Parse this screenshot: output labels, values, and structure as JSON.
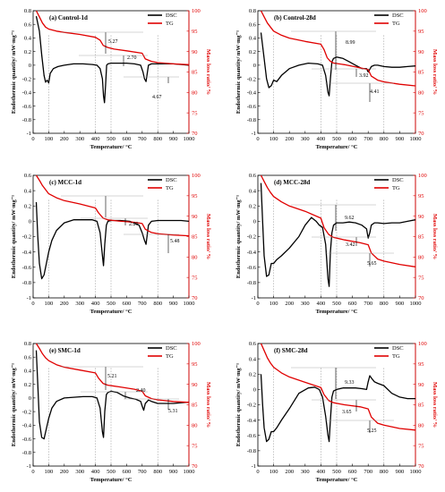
{
  "chart_data": [
    {
      "type": "line",
      "title": "(a) Control-1d",
      "xlabel": "Temperature/ °C",
      "ylabel": "Endothermic quantity/ mW·mg⁻¹",
      "ylabel_right": "Mass loss ratio/ %",
      "xlim": [
        0,
        1000
      ],
      "ylim": [
        -1,
        0.8
      ],
      "ylim_right": [
        70,
        100
      ],
      "xticks": [
        "0",
        "100",
        "200",
        "300",
        "400",
        "500",
        "600",
        "700",
        "800",
        "900",
        "1000"
      ],
      "yticks": [
        "-1",
        "-0.8",
        "-0.6",
        "-0.4",
        "-0.2",
        "0",
        "0.2",
        "0.4",
        "0.6",
        "0.8"
      ],
      "yticks_right": [
        "70",
        "75",
        "80",
        "85",
        "90",
        "95",
        "100"
      ],
      "legend": [
        "DSC",
        "TG"
      ],
      "series": [
        {
          "name": "DSC",
          "axis": "left",
          "color": "#000000",
          "x": [
            20,
            40,
            55,
            70,
            80,
            90,
            100,
            110,
            130,
            160,
            200,
            260,
            320,
            380,
            410,
            430,
            445,
            452,
            458,
            465,
            472,
            480,
            500,
            540,
            600,
            650,
            690,
            705,
            715,
            725,
            740,
            760,
            800,
            850,
            900,
            950,
            1000
          ],
          "y": [
            0.72,
            0.5,
            0.15,
            -0.15,
            -0.25,
            -0.22,
            -0.26,
            -0.12,
            -0.05,
            -0.02,
            0.0,
            0.02,
            0.02,
            0.01,
            0.0,
            -0.05,
            -0.2,
            -0.45,
            -0.55,
            -0.3,
            0.0,
            0.02,
            0.03,
            0.03,
            0.03,
            0.02,
            0.0,
            -0.1,
            -0.2,
            -0.24,
            0.0,
            0.02,
            0.02,
            0.02,
            0.02,
            0.01,
            0.0
          ]
        },
        {
          "name": "TG",
          "axis": "right",
          "color": "#e00000",
          "x": [
            20,
            40,
            60,
            80,
            100,
            150,
            200,
            300,
            400,
            430,
            450,
            480,
            520,
            600,
            700,
            720,
            760,
            800,
            900,
            1000
          ],
          "y": [
            100,
            98.5,
            97,
            96,
            95.5,
            95,
            94.7,
            94.2,
            93.5,
            92.8,
            91.5,
            91,
            90.6,
            90.2,
            89.6,
            88.2,
            87.6,
            87.3,
            87.0,
            86.8
          ]
        }
      ],
      "annotations": [
        "5.27",
        "2.70",
        "4.67"
      ]
    },
    {
      "type": "line",
      "title": "(b) Control-28d",
      "xlabel": "Temperature/ °C",
      "ylabel": "Endothermic quantity/ mW·mg⁻¹",
      "ylabel_right": "Mass loss ratio/ %",
      "xlim": [
        0,
        1000
      ],
      "ylim": [
        -1,
        0.8
      ],
      "ylim_right": [
        70,
        100
      ],
      "xticks": [
        "0",
        "100",
        "200",
        "300",
        "400",
        "500",
        "600",
        "700",
        "800",
        "900",
        "1000"
      ],
      "yticks": [
        "-1",
        "-0.8",
        "-0.6",
        "-0.4",
        "-0.2",
        "0",
        "0.2",
        "0.4",
        "0.6",
        "0.8"
      ],
      "yticks_right": [
        "70",
        "75",
        "80",
        "85",
        "90",
        "95",
        "100"
      ],
      "legend": [
        "DSC",
        "TG"
      ],
      "series": [
        {
          "name": "DSC",
          "axis": "left",
          "color": "#000000",
          "x": [
            20,
            40,
            55,
            70,
            85,
            100,
            120,
            150,
            200,
            260,
            320,
            380,
            410,
            430,
            445,
            452,
            460,
            470,
            480,
            500,
            540,
            580,
            620,
            660,
            690,
            700,
            710,
            720,
            740,
            760,
            800,
            850,
            900,
            950,
            1000
          ],
          "y": [
            0.48,
            0.1,
            -0.2,
            -0.33,
            -0.3,
            -0.22,
            -0.24,
            -0.15,
            -0.05,
            0.0,
            0.03,
            0.02,
            0.0,
            -0.15,
            -0.4,
            -0.45,
            -0.2,
            0.05,
            0.1,
            0.12,
            0.1,
            0.05,
            0.0,
            -0.05,
            -0.05,
            -0.1,
            -0.06,
            -0.02,
            0.0,
            0.0,
            -0.02,
            -0.03,
            -0.03,
            -0.02,
            -0.01
          ]
        },
        {
          "name": "TG",
          "axis": "right",
          "color": "#e00000",
          "x": [
            20,
            40,
            60,
            80,
            100,
            150,
            200,
            300,
            400,
            420,
            440,
            460,
            480,
            550,
            650,
            700,
            720,
            760,
            800,
            900,
            1000
          ],
          "y": [
            100,
            98.5,
            97,
            96,
            95,
            94,
            93.3,
            92.5,
            91.8,
            90.5,
            88.5,
            87.6,
            87.2,
            86.8,
            86.0,
            85.6,
            84.0,
            83.0,
            82.6,
            82.0,
            81.6
          ]
        }
      ],
      "annotations": [
        "8.99",
        "3.92",
        "4.41"
      ]
    },
    {
      "type": "line",
      "title": "(c) MCC-1d",
      "xlabel": "Temperature/ °C",
      "ylabel": "Endothermic quantity/ mW·mg⁻¹",
      "ylabel_right": "Mass loss ratio/ %",
      "xlim": [
        0,
        1000
      ],
      "ylim": [
        -1,
        0.6
      ],
      "ylim_right": [
        70,
        100
      ],
      "xticks": [
        "0",
        "100",
        "200",
        "300",
        "400",
        "500",
        "600",
        "700",
        "800",
        "900",
        "1000"
      ],
      "yticks": [
        "-1",
        "-0.8",
        "-0.6",
        "-0.4",
        "-0.2",
        "0",
        "0.2",
        "0.4",
        "0.6"
      ],
      "yticks_right": [
        "70",
        "75",
        "80",
        "85",
        "90",
        "95",
        "100"
      ],
      "legend": [
        "DSC",
        "TG"
      ],
      "series": [
        {
          "name": "DSC",
          "axis": "left",
          "color": "#000000",
          "x": [
            20,
            30,
            40,
            55,
            70,
            85,
            100,
            120,
            150,
            200,
            260,
            320,
            380,
            410,
            430,
            445,
            452,
            460,
            470,
            480,
            500,
            560,
            620,
            680,
            700,
            715,
            725,
            740,
            760,
            800,
            850,
            900,
            950,
            1000
          ],
          "y": [
            0.25,
            -0.2,
            -0.55,
            -0.75,
            -0.7,
            -0.55,
            -0.4,
            -0.25,
            -0.12,
            -0.02,
            0.02,
            0.02,
            0.02,
            0.0,
            -0.15,
            -0.45,
            -0.58,
            -0.3,
            -0.05,
            0.0,
            0.01,
            0.01,
            0.0,
            -0.05,
            -0.15,
            -0.25,
            -0.3,
            -0.05,
            0.0,
            0.01,
            0.01,
            0.01,
            0.01,
            0.0
          ]
        },
        {
          "name": "TG",
          "axis": "right",
          "color": "#e00000",
          "x": [
            20,
            40,
            60,
            80,
            100,
            150,
            200,
            300,
            400,
            420,
            450,
            480,
            550,
            650,
            700,
            720,
            760,
            800,
            900,
            1000
          ],
          "y": [
            100,
            98.8,
            97.5,
            96.5,
            95.5,
            94.5,
            93.8,
            93.0,
            92.0,
            90.8,
            89.5,
            89.1,
            88.8,
            88.5,
            88.2,
            86.8,
            86.0,
            85.7,
            85.4,
            85.2
          ]
        }
      ],
      "annotations": [
        "2.29",
        "5.48"
      ]
    },
    {
      "type": "line",
      "title": "(d) MCC-28d",
      "xlabel": "Temperature/ °C",
      "ylabel": "Endothermic quantity/ mW·mg⁻¹",
      "ylabel_right": "Mass loss ratio/ %",
      "xlim": [
        0,
        1000
      ],
      "ylim": [
        -1,
        0.6
      ],
      "ylim_right": [
        70,
        100
      ],
      "xticks": [
        "0",
        "100",
        "200",
        "300",
        "400",
        "500",
        "600",
        "700",
        "800",
        "900",
        "1000"
      ],
      "yticks": [
        "-1",
        "-0.8",
        "-0.6",
        "-0.4",
        "-0.2",
        "0",
        "0.2",
        "0.4",
        "0.6"
      ],
      "yticks_right": [
        "70",
        "75",
        "80",
        "85",
        "90",
        "95",
        "100"
      ],
      "legend": [
        "DSC",
        "TG"
      ],
      "series": [
        {
          "name": "DSC",
          "axis": "left",
          "color": "#000000",
          "x": [
            20,
            30,
            40,
            55,
            70,
            85,
            100,
            120,
            150,
            200,
            260,
            300,
            340,
            370,
            390,
            410,
            430,
            445,
            452,
            460,
            470,
            480,
            500,
            540,
            580,
            620,
            660,
            690,
            700,
            710,
            720,
            740,
            760,
            800,
            850,
            900,
            950,
            1000
          ],
          "y": [
            0.5,
            0.0,
            -0.45,
            -0.72,
            -0.7,
            -0.55,
            -0.55,
            -0.5,
            -0.45,
            -0.35,
            -0.2,
            -0.05,
            0.05,
            0.0,
            -0.05,
            -0.08,
            -0.3,
            -0.75,
            -0.85,
            -0.4,
            -0.15,
            -0.05,
            -0.02,
            -0.02,
            -0.01,
            -0.02,
            -0.05,
            -0.1,
            -0.22,
            -0.15,
            -0.05,
            -0.02,
            -0.02,
            -0.03,
            -0.02,
            -0.02,
            0.0,
            0.02
          ]
        },
        {
          "name": "TG",
          "axis": "right",
          "color": "#e00000",
          "x": [
            20,
            40,
            60,
            80,
            100,
            150,
            200,
            300,
            400,
            420,
            450,
            480,
            550,
            650,
            700,
            720,
            760,
            800,
            900,
            1000
          ],
          "y": [
            100,
            98.5,
            97,
            95.8,
            94.8,
            93.5,
            92.5,
            91.2,
            89.5,
            87.2,
            85.5,
            84.8,
            84.2,
            83.5,
            83.0,
            81.0,
            79.5,
            79.0,
            78.2,
            77.6
          ]
        }
      ],
      "annotations": [
        "9.62",
        "3.42",
        "5.65"
      ]
    },
    {
      "type": "line",
      "title": "(e) SMC-1d",
      "xlabel": "Temperature/ °C",
      "ylabel": "Endothermic quantity/ mW·mg⁻¹",
      "ylabel_right": "Mass loss ratio/ %",
      "xlim": [
        0,
        1000
      ],
      "ylim": [
        -1,
        0.8
      ],
      "ylim_right": [
        70,
        100
      ],
      "xticks": [
        "0",
        "100",
        "200",
        "300",
        "400",
        "500",
        "600",
        "700",
        "800",
        "900",
        "1000"
      ],
      "yticks": [
        "-1",
        "-0.8",
        "-0.6",
        "-0.4",
        "-0.2",
        "0",
        "0.2",
        "0.4",
        "0.6",
        "0.8"
      ],
      "yticks_right": [
        "70",
        "75",
        "80",
        "85",
        "90",
        "95",
        "100"
      ],
      "legend": [
        "DSC",
        "TG"
      ],
      "series": [
        {
          "name": "DSC",
          "axis": "left",
          "color": "#000000",
          "x": [
            20,
            30,
            40,
            55,
            70,
            85,
            100,
            120,
            150,
            200,
            260,
            320,
            380,
            410,
            430,
            445,
            452,
            460,
            470,
            480,
            500,
            540,
            580,
            620,
            660,
            690,
            700,
            710,
            720,
            740,
            760,
            800,
            850,
            900,
            950,
            1000
          ],
          "y": [
            0.7,
            0.2,
            -0.35,
            -0.58,
            -0.6,
            -0.45,
            -0.3,
            -0.15,
            -0.05,
            0.0,
            0.01,
            0.02,
            0.02,
            0.0,
            -0.15,
            -0.5,
            -0.58,
            -0.2,
            0.05,
            0.08,
            0.1,
            0.08,
            0.03,
            0.0,
            -0.02,
            -0.05,
            -0.12,
            -0.18,
            -0.08,
            -0.03,
            -0.05,
            -0.08,
            -0.08,
            -0.08,
            -0.07,
            -0.06
          ]
        },
        {
          "name": "TG",
          "axis": "right",
          "color": "#e00000",
          "x": [
            20,
            40,
            60,
            80,
            100,
            150,
            200,
            300,
            400,
            420,
            450,
            480,
            550,
            650,
            700,
            720,
            760,
            800,
            900,
            1000
          ],
          "y": [
            100,
            98.8,
            97.5,
            96.5,
            95.8,
            94.8,
            94.2,
            93.5,
            92.8,
            91.5,
            90.2,
            89.8,
            89.4,
            88.8,
            88.3,
            87.2,
            86.5,
            86.2,
            85.8,
            85.6
          ]
        }
      ],
      "annotations": [
        "5.21",
        "2.40",
        "5.31"
      ]
    },
    {
      "type": "line",
      "title": "(f) SMC-28d",
      "xlabel": "Temperature/ °C",
      "ylabel": "Endothermic quantity/ mW·mg⁻¹",
      "ylabel_right": "Mass loss ratio/ %",
      "xlim": [
        0,
        1000
      ],
      "ylim": [
        -1,
        0.6
      ],
      "ylim_right": [
        70,
        100
      ],
      "xticks": [
        "0",
        "100",
        "200",
        "300",
        "400",
        "500",
        "600",
        "700",
        "800",
        "900",
        "1000"
      ],
      "yticks": [
        "-1",
        "-0.8",
        "-0.6",
        "-0.4",
        "-0.2",
        "0",
        "0.2",
        "0.4",
        "0.6"
      ],
      "yticks_right": [
        "70",
        "75",
        "80",
        "85",
        "90",
        "95",
        "100"
      ],
      "legend": [
        "DSC",
        "TG"
      ],
      "series": [
        {
          "name": "DSC",
          "axis": "left",
          "color": "#000000",
          "x": [
            20,
            30,
            40,
            55,
            70,
            85,
            100,
            120,
            150,
            200,
            260,
            320,
            360,
            390,
            410,
            430,
            445,
            452,
            460,
            470,
            480,
            500,
            540,
            580,
            620,
            660,
            690,
            700,
            710,
            720,
            740,
            760,
            800,
            850,
            900,
            950,
            1000
          ],
          "y": [
            0.2,
            -0.2,
            -0.5,
            -0.68,
            -0.65,
            -0.55,
            -0.55,
            -0.5,
            -0.4,
            -0.25,
            -0.05,
            0.02,
            0.03,
            0.0,
            -0.1,
            -0.35,
            -0.6,
            -0.68,
            -0.4,
            -0.1,
            -0.02,
            0.0,
            0.02,
            0.02,
            0.02,
            0.01,
            0.0,
            0.1,
            0.18,
            0.15,
            0.1,
            0.08,
            0.05,
            -0.05,
            -0.1,
            -0.12,
            -0.12
          ]
        },
        {
          "name": "TG",
          "axis": "right",
          "color": "#e00000",
          "x": [
            20,
            40,
            60,
            80,
            100,
            150,
            200,
            300,
            400,
            420,
            450,
            480,
            550,
            650,
            700,
            720,
            760,
            800,
            900,
            1000
          ],
          "y": [
            100,
            98.3,
            96.5,
            95.2,
            94.2,
            92.8,
            91.8,
            90.5,
            89.2,
            87.5,
            86.0,
            85.5,
            85.0,
            84.5,
            84.0,
            82.0,
            80.5,
            80.0,
            79.2,
            78.8
          ]
        }
      ],
      "annotations": [
        "9.33",
        "3.65",
        "5.25"
      ]
    }
  ]
}
